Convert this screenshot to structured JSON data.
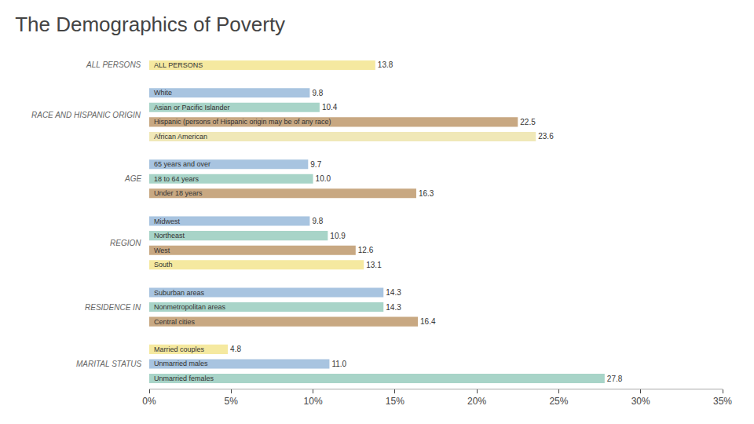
{
  "chart_data": {
    "type": "bar",
    "orientation": "horizontal",
    "title": "The Demographics of Poverty",
    "categories": [
      "ALL PERSONS",
      "White",
      "Asian or Pacific Islander",
      "Hispanic (persons of Hispanic origin may be of any race)",
      "African American",
      "65 years and over",
      "18 to 64 years",
      "Under 18 years",
      "Midwest",
      "Northeast",
      "West",
      "South",
      "Suburban areas",
      "Nonmetropolitan areas",
      "Central cities",
      "Married couples",
      "Unmarried males",
      "Unmarried females"
    ],
    "values": [
      13.8,
      9.8,
      10.4,
      22.5,
      23.6,
      9.7,
      10.0,
      16.3,
      9.8,
      10.9,
      12.6,
      13.1,
      14.3,
      14.3,
      16.4,
      4.8,
      11.0,
      27.8
    ],
    "value_labels": [
      "13.8",
      "9.8",
      "10.4",
      "22.5",
      "23.6",
      "9.7",
      "10.0",
      "16.3",
      "9.8",
      "10.9",
      "12.6",
      "13.1",
      "14.3",
      "14.3",
      "16.4",
      "4.8",
      "11.0",
      "27.8"
    ],
    "colors": [
      "#F5E9A0",
      "#A8C4E0",
      "#A8D4C8",
      "#C8A882",
      "#F0E8B8",
      "#A8C4E0",
      "#A8D4C8",
      "#C8A882",
      "#A8C4E0",
      "#A8D4C8",
      "#C8A882",
      "#F5E9A0",
      "#A8C4E0",
      "#A8D4C8",
      "#C8A882",
      "#F5E9A0",
      "#A8C4E0",
      "#A8D4C8"
    ],
    "groups": [
      {
        "label": "ALL PERSONS",
        "categories": [
          "ALL PERSONS"
        ]
      },
      {
        "label": "RACE AND HISPANIC ORIGIN",
        "categories": [
          "White",
          "Asian or Pacific Islander",
          "Hispanic (persons of Hispanic origin may be of any race)",
          "African American"
        ]
      },
      {
        "label": "AGE",
        "categories": [
          "65 years and over",
          "18 to 64 years",
          "Under 18 years"
        ]
      },
      {
        "label": "REGION",
        "categories": [
          "Midwest",
          "Northeast",
          "West",
          "South"
        ]
      },
      {
        "label": "RESIDENCE IN",
        "categories": [
          "Suburban areas",
          "Nonmetropolitan areas",
          "Central cities"
        ]
      },
      {
        "label": "MARITAL STATUS",
        "categories": [
          "Married couples",
          "Unmarried males",
          "Unmarried females"
        ]
      }
    ],
    "xlim": [
      0,
      35
    ],
    "xticks": [
      {
        "value": 0,
        "label": "0%"
      },
      {
        "value": 5,
        "label": "5%"
      },
      {
        "value": 10,
        "label": "10%"
      },
      {
        "value": 15,
        "label": "15%"
      },
      {
        "value": 20,
        "label": "20%"
      },
      {
        "value": 25,
        "label": "25%"
      },
      {
        "value": 30,
        "label": "30%"
      },
      {
        "value": 35,
        "label": "35%"
      }
    ],
    "data_labels": true,
    "grid": false
  }
}
